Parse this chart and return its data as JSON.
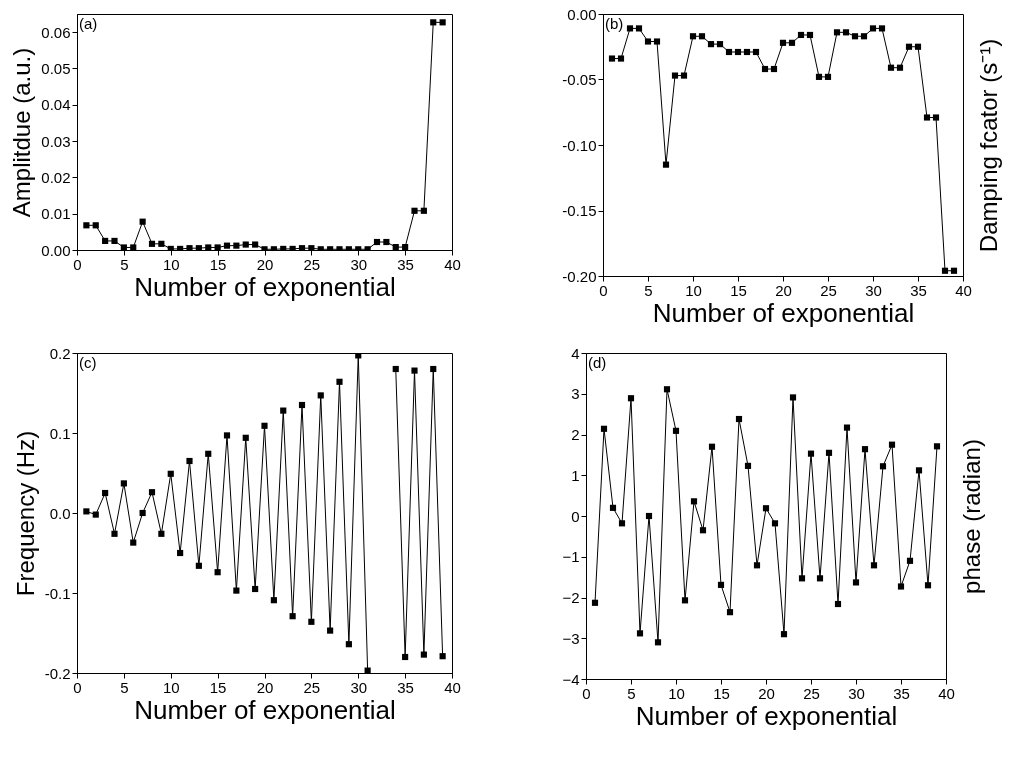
{
  "chart_data": [
    {
      "type": "line",
      "xlabel": "Number of exponential",
      "ylabel": "Amplitdue (a.u.)",
      "annotations": [
        "(a)"
      ],
      "marker": "square",
      "grid": false,
      "xlim": [
        0,
        40
      ],
      "xticks": [
        0,
        5,
        10,
        15,
        20,
        25,
        30,
        35,
        40
      ],
      "ylim": [
        0,
        0.065
      ],
      "yticks": [
        {
          "value": 0,
          "label": "0.00"
        },
        {
          "value": 0.01,
          "label": "0.01"
        },
        {
          "value": 0.02,
          "label": "0.02"
        },
        {
          "value": 0.03,
          "label": "0.03"
        },
        {
          "value": 0.04,
          "label": "0.04"
        },
        {
          "value": 0.05,
          "label": "0.05"
        },
        {
          "value": 0.06,
          "label": "0.06"
        }
      ],
      "x": [
        1,
        2,
        3,
        4,
        5,
        6,
        7,
        8,
        9,
        10,
        11,
        12,
        13,
        14,
        15,
        16,
        17,
        18,
        19,
        20,
        21,
        22,
        23,
        24,
        25,
        26,
        27,
        28,
        29,
        30,
        31,
        32,
        33,
        34,
        35,
        36,
        37,
        38,
        39
      ],
      "series": [
        {
          "color": "#000000",
          "values": [
            0.0068,
            0.0068,
            0.0025,
            0.0025,
            0.0007,
            0.0007,
            0.0078,
            0.0017,
            0.0017,
            0.0003,
            0.0003,
            0.0005,
            0.0005,
            0.0007,
            0.0007,
            0.0012,
            0.0012,
            0.0015,
            0.0015,
            0.0002,
            0.0002,
            0.0003,
            0.0003,
            0.0005,
            0.0005,
            0.0002,
            0.0002,
            0.0002,
            0.0002,
            0.0002,
            0.0002,
            0.0022,
            0.0022,
            0.0008,
            0.0008,
            0.0108,
            0.0108,
            0.0627,
            0.0627
          ]
        }
      ]
    },
    {
      "type": "line",
      "xlabel": "Number of exponential",
      "ylabel": "Damping fcator (s⁻¹)",
      "annotations": [
        "(b)"
      ],
      "marker": "square",
      "grid": false,
      "xlim": [
        0,
        40
      ],
      "xticks": [
        0,
        5,
        10,
        15,
        20,
        25,
        30,
        35,
        40
      ],
      "ylim": [
        -0.2,
        0
      ],
      "yticks": [
        {
          "value": -0.2,
          "label": "-0.20"
        },
        {
          "value": -0.15,
          "label": "-0.15"
        },
        {
          "value": -0.1,
          "label": "-0.10"
        },
        {
          "value": -0.05,
          "label": "-0.05"
        },
        {
          "value": 0,
          "label": "0.00"
        }
      ],
      "x": [
        1,
        2,
        3,
        4,
        5,
        6,
        7,
        8,
        9,
        10,
        11,
        12,
        13,
        14,
        15,
        16,
        17,
        18,
        19,
        20,
        21,
        22,
        23,
        24,
        25,
        26,
        27,
        28,
        29,
        30,
        31,
        32,
        33,
        34,
        35,
        36,
        37,
        38,
        39
      ],
      "series": [
        {
          "color": "#000000",
          "values": [
            -0.034,
            -0.034,
            -0.011,
            -0.011,
            -0.021,
            -0.021,
            -0.115,
            -0.047,
            -0.047,
            -0.017,
            -0.017,
            -0.023,
            -0.023,
            -0.029,
            -0.029,
            -0.029,
            -0.029,
            -0.042,
            -0.042,
            -0.022,
            -0.022,
            -0.016,
            -0.016,
            -0.048,
            -0.048,
            -0.014,
            -0.014,
            -0.017,
            -0.017,
            -0.011,
            -0.011,
            -0.041,
            -0.041,
            -0.025,
            -0.025,
            -0.079,
            -0.079,
            -0.196,
            -0.196
          ]
        }
      ]
    },
    {
      "type": "line",
      "xlabel": "Number of exponential",
      "ylabel": "Frequency (Hz)",
      "annotations": [
        "(c)"
      ],
      "marker": "square",
      "grid": false,
      "xlim": [
        0,
        40
      ],
      "xticks": [
        0,
        5,
        10,
        15,
        20,
        25,
        30,
        35,
        40
      ],
      "ylim": [
        -0.2,
        0.2
      ],
      "yticks": [
        {
          "value": -0.2,
          "label": "-0.2"
        },
        {
          "value": -0.1,
          "label": "-0.1"
        },
        {
          "value": 0,
          "label": "0.0"
        },
        {
          "value": 0.1,
          "label": "0.1"
        },
        {
          "value": 0.2,
          "label": "0.2"
        }
      ],
      "x": [
        1,
        2,
        3,
        4,
        5,
        6,
        7,
        8,
        9,
        10,
        11,
        12,
        13,
        14,
        15,
        16,
        17,
        18,
        19,
        20,
        21,
        22,
        23,
        24,
        25,
        26,
        27,
        28,
        29,
        30,
        31,
        32,
        33,
        34,
        35,
        36,
        37,
        38,
        39
      ],
      "series": [
        {
          "color": "#000000",
          "values": [
            0.002,
            -0.002,
            0.025,
            -0.026,
            0.037,
            -0.037,
            0.0,
            0.026,
            -0.026,
            0.049,
            -0.05,
            0.065,
            -0.066,
            0.074,
            -0.074,
            0.097,
            -0.097,
            0.094,
            -0.095,
            0.109,
            -0.109,
            0.128,
            -0.129,
            0.135,
            -0.136,
            0.147,
            -0.147,
            0.164,
            -0.164,
            0.197,
            -0.197,
            null,
            null,
            0.18,
            -0.18,
            0.178,
            -0.177,
            0.18,
            -0.179
          ]
        }
      ]
    },
    {
      "type": "line",
      "xlabel": "Number of exponential",
      "ylabel": "phase (radian)",
      "annotations": [
        "(d)"
      ],
      "marker": "square",
      "grid": false,
      "xlim": [
        0,
        40
      ],
      "xticks": [
        0,
        5,
        10,
        15,
        20,
        25,
        30,
        35,
        40
      ],
      "ylim": [
        -4,
        4
      ],
      "yticks": [
        -4,
        -3,
        -2,
        -1,
        0,
        1,
        2,
        3,
        4
      ],
      "x": [
        1,
        2,
        3,
        4,
        5,
        6,
        7,
        8,
        9,
        10,
        11,
        12,
        13,
        14,
        15,
        16,
        17,
        18,
        19,
        20,
        21,
        22,
        23,
        24,
        25,
        26,
        27,
        28,
        29,
        30,
        31,
        32,
        33,
        34,
        35,
        36,
        37,
        38,
        39
      ],
      "series": [
        {
          "color": "#000000",
          "values": [
            -2.13,
            2.14,
            0.2,
            -0.18,
            2.89,
            -2.88,
            0.0,
            -3.1,
            3.11,
            2.09,
            -2.07,
            0.36,
            -0.35,
            1.7,
            -1.69,
            -2.36,
            2.38,
            1.23,
            -1.21,
            0.19,
            -0.18,
            -2.9,
            2.91,
            -1.53,
            1.53,
            -1.53,
            1.55,
            -2.16,
            2.17,
            -1.63,
            1.64,
            -1.21,
            1.22,
            1.75,
            -1.73,
            -1.1,
            1.12,
            -1.7,
            1.71
          ]
        }
      ]
    }
  ]
}
